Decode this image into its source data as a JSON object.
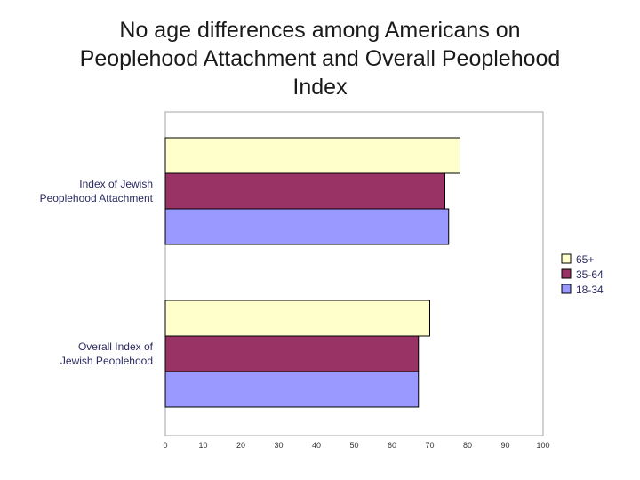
{
  "title_lines": [
    "No age differences among Americans on",
    "Peoplehood Attachment and Overall Peoplehood",
    "Index"
  ],
  "chart_data": {
    "type": "bar",
    "orientation": "horizontal",
    "categories": [
      [
        "Index of Jewish",
        "Peoplehood Attachment"
      ],
      [
        "Overall Index of",
        "Jewish Peoplehood"
      ]
    ],
    "series": [
      {
        "name": "65+",
        "color": "#ffffcc",
        "values": [
          78,
          70
        ]
      },
      {
        "name": "35-64",
        "color": "#993366",
        "values": [
          74,
          67
        ]
      },
      {
        "name": "18-34",
        "color": "#9999ff",
        "values": [
          75,
          67
        ]
      }
    ],
    "xlim": [
      0,
      100
    ],
    "ticks": [
      0,
      10,
      20,
      30,
      40,
      50,
      60,
      70,
      80,
      90,
      100
    ],
    "grid": false,
    "legend_position": "right"
  }
}
